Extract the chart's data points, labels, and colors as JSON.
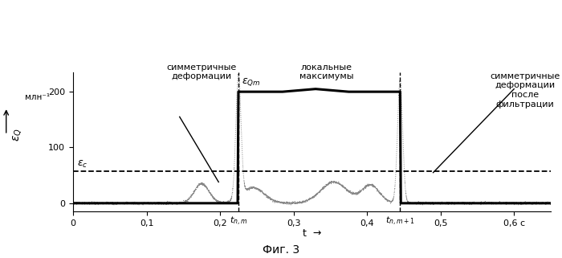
{
  "title": "Фиг. 3",
  "xlabel": "t  →",
  "ylabel_symbol": "εQ",
  "ylabel_units": "млн⁻¹",
  "ylim": [
    -15,
    235
  ],
  "xlim": [
    0,
    0.65
  ],
  "yticks": [
    0,
    100,
    200
  ],
  "xticks": [
    0,
    0.1,
    0.2,
    0.3,
    0.4,
    0.5,
    0.6
  ],
  "xtick_labels": [
    "0",
    "0,1",
    "0,2",
    "0,3",
    "0,4",
    "0,5",
    "0,6 с"
  ],
  "epsilon_c": 58,
  "epsilon_Qm_label": 200,
  "t_nm": 0.225,
  "t_nm1": 0.445,
  "annotation_sym_def": "симметричные\nдеформации",
  "annotation_lok_max": "локальные\nмаксимумы",
  "annotation_sym_def2": "симметричные\nдеформации\nпосле\nфильтрации",
  "background_color": "#ffffff",
  "signal_color": "#888888",
  "bold_line_color": "#000000",
  "dashed_color": "#000000"
}
